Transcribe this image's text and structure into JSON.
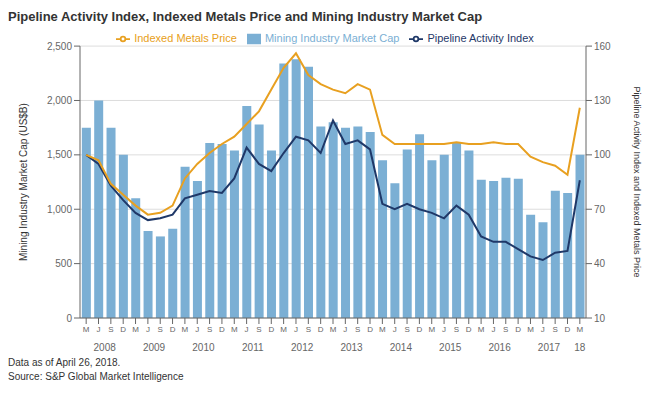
{
  "chart_data": {
    "type": "bar",
    "title": "Pipeline Activity Index, Indexed Metals Price and Mining Industry Market Cap",
    "ylabel": "Mining Industry Market Cap (US$B)",
    "y2label": "Pipeline Activity Index and Indexed Metals Price",
    "footnotes": [
      "Data as of April 26, 2018.",
      "Source: S&P Global Market Intelligence"
    ],
    "categories": [
      "M",
      "J",
      "S",
      "D",
      "M",
      "J",
      "S",
      "D",
      "M",
      "J",
      "S",
      "D",
      "M",
      "J",
      "S",
      "D",
      "M",
      "J",
      "S",
      "D",
      "M",
      "J",
      "S",
      "D",
      "M",
      "J",
      "S",
      "D",
      "M",
      "J",
      "S",
      "D",
      "M",
      "J",
      "S",
      "D",
      "M",
      "J",
      "S",
      "D",
      "M"
    ],
    "annotations": [
      {
        "text": "2008",
        "x": 1.5
      },
      {
        "text": "2009",
        "x": 5.5
      },
      {
        "text": "2010",
        "x": 9.5
      },
      {
        "text": "2011",
        "x": 13.5
      },
      {
        "text": "2012",
        "x": 17.5
      },
      {
        "text": "2013",
        "x": 21.5
      },
      {
        "text": "2014",
        "x": 25.5
      },
      {
        "text": "2015",
        "x": 29.5
      },
      {
        "text": "2016",
        "x": 33.5
      },
      {
        "text": "2017",
        "x": 37.5
      },
      {
        "text": "18",
        "x": 40
      }
    ],
    "series": [
      {
        "name": "Mining Industry Market Cap",
        "type": "bar",
        "axis": "y",
        "color": "#7BAFD4",
        "values": [
          1750,
          2000,
          1750,
          1500,
          1100,
          800,
          750,
          820,
          1390,
          1260,
          1610,
          1600,
          1540,
          1950,
          1780,
          1540,
          2340,
          2380,
          2310,
          1760,
          1800,
          1750,
          1760,
          1710,
          1450,
          1240,
          1550,
          1690,
          1450,
          1500,
          1610,
          1540,
          1270,
          1260,
          1290,
          1280,
          950,
          880,
          1170,
          1150,
          1500
        ]
      },
      {
        "name": "Pipeline Activity Index",
        "type": "line",
        "axis": "y2",
        "color": "#1F3868",
        "values": [
          100,
          95,
          83,
          75,
          68,
          64,
          65,
          67,
          76,
          78,
          80,
          79,
          87,
          104,
          95,
          91,
          101,
          110,
          108,
          101,
          119,
          106,
          108,
          103,
          73,
          70,
          73,
          70,
          68,
          65,
          72,
          67,
          55,
          52,
          52,
          48,
          44,
          42,
          46,
          47,
          86
        ]
      },
      {
        "name": "Indexed Metals Price",
        "type": "line",
        "axis": "y2",
        "color": "#E8A020",
        "values": [
          100,
          97,
          84,
          78,
          72,
          67,
          68,
          72,
          87,
          95,
          101,
          106,
          110,
          117,
          124,
          136,
          148,
          156,
          144,
          139,
          136,
          134,
          139,
          136,
          111,
          106,
          106,
          106,
          106,
          106,
          107,
          106,
          106,
          107,
          106,
          106,
          99,
          96,
          94,
          89,
          126
        ]
      }
    ],
    "ylim": [
      0,
      2500
    ],
    "yticks": [
      0,
      500,
      {
        "value": 1000,
        "label": "1,000"
      },
      {
        "value": 1500,
        "label": "1,500"
      },
      {
        "value": 2000,
        "label": "2,000"
      },
      {
        "value": 2500,
        "label": "2,500"
      }
    ],
    "y2lim": [
      10,
      160
    ],
    "y2ticks": [
      10,
      40,
      70,
      100,
      130,
      160
    ],
    "grid": true,
    "legend": "top"
  }
}
